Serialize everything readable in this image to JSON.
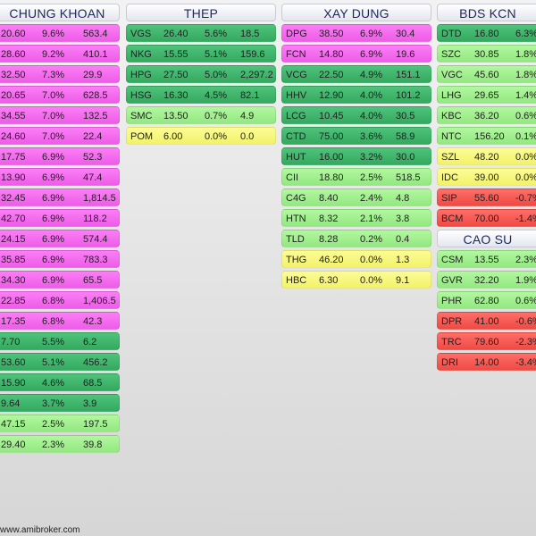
{
  "footer": {
    "watermark": "www.amibroker.com"
  },
  "colors": {
    "pink": "#f46cef",
    "dark_green": "#41b66d",
    "light_green": "#a3f090",
    "yellow": "#f7f780",
    "red": "#f75c57"
  },
  "columns": [
    {
      "title": "CHUNG KHOAN",
      "rows": [
        {
          "price": "20.60",
          "change": "9.6%",
          "volume": "563.4",
          "color": "pink"
        },
        {
          "price": "28.60",
          "change": "9.2%",
          "volume": "410.1",
          "color": "pink"
        },
        {
          "price": "32.50",
          "change": "7.3%",
          "volume": "29.9",
          "color": "pink"
        },
        {
          "price": "20.65",
          "change": "7.0%",
          "volume": "628.5",
          "color": "pink"
        },
        {
          "price": "34.55",
          "change": "7.0%",
          "volume": "132.5",
          "color": "pink"
        },
        {
          "price": "24.60",
          "change": "7.0%",
          "volume": "22.4",
          "color": "pink"
        },
        {
          "price": "17.75",
          "change": "6.9%",
          "volume": "52.3",
          "color": "pink"
        },
        {
          "price": "13.90",
          "change": "6.9%",
          "volume": "47.4",
          "color": "pink"
        },
        {
          "price": "32.45",
          "change": "6.9%",
          "volume": "1,814.5",
          "color": "pink"
        },
        {
          "price": "42.70",
          "change": "6.9%",
          "volume": "118.2",
          "color": "pink"
        },
        {
          "price": "24.15",
          "change": "6.9%",
          "volume": "574.4",
          "color": "pink"
        },
        {
          "price": "35.85",
          "change": "6.9%",
          "volume": "783.3",
          "color": "pink"
        },
        {
          "price": "34.30",
          "change": "6.9%",
          "volume": "65.5",
          "color": "pink"
        },
        {
          "price": "22.85",
          "change": "6.8%",
          "volume": "1,406.5",
          "color": "pink"
        },
        {
          "price": "17.35",
          "change": "6.8%",
          "volume": "42.3",
          "color": "pink"
        },
        {
          "price": "7.70",
          "change": "5.5%",
          "volume": "6.2",
          "color": "dark_green"
        },
        {
          "price": "53.60",
          "change": "5.1%",
          "volume": "456.2",
          "color": "dark_green"
        },
        {
          "price": "15.90",
          "change": "4.6%",
          "volume": "68.5",
          "color": "dark_green"
        },
        {
          "price": "9.64",
          "change": "3.7%",
          "volume": "3.9",
          "color": "dark_green"
        },
        {
          "price": "47.15",
          "change": "2.5%",
          "volume": "197.5",
          "color": "light_green"
        },
        {
          "price": "29.40",
          "change": "2.3%",
          "volume": "39.8",
          "color": "light_green"
        }
      ]
    },
    {
      "title": "THEP",
      "rows": [
        {
          "symbol": "VGS",
          "price": "26.40",
          "change": "5.6%",
          "volume": "18.5",
          "color": "dark_green"
        },
        {
          "symbol": "NKG",
          "price": "15.55",
          "change": "5.1%",
          "volume": "159.6",
          "color": "dark_green"
        },
        {
          "symbol": "HPG",
          "price": "27.50",
          "change": "5.0%",
          "volume": "2,297.2",
          "color": "dark_green"
        },
        {
          "symbol": "HSG",
          "price": "16.30",
          "change": "4.5%",
          "volume": "82.1",
          "color": "dark_green"
        },
        {
          "symbol": "SMC",
          "price": "13.50",
          "change": "0.7%",
          "volume": "4.9",
          "color": "light_green"
        },
        {
          "symbol": "POM",
          "price": "6.00",
          "change": "0.0%",
          "volume": "0.0",
          "color": "yellow"
        }
      ]
    },
    {
      "title": "XAY DUNG",
      "rows": [
        {
          "symbol": "DPG",
          "price": "38.50",
          "change": "6.9%",
          "volume": "30.4",
          "color": "pink"
        },
        {
          "symbol": "FCN",
          "price": "14.80",
          "change": "6.9%",
          "volume": "19.6",
          "color": "pink"
        },
        {
          "symbol": "VCG",
          "price": "22.50",
          "change": "4.9%",
          "volume": "151.1",
          "color": "dark_green"
        },
        {
          "symbol": "HHV",
          "price": "12.90",
          "change": "4.0%",
          "volume": "101.2",
          "color": "dark_green"
        },
        {
          "symbol": "LCG",
          "price": "10.45",
          "change": "4.0%",
          "volume": "30.5",
          "color": "dark_green"
        },
        {
          "symbol": "CTD",
          "price": "75.00",
          "change": "3.6%",
          "volume": "58.9",
          "color": "dark_green"
        },
        {
          "symbol": "HUT",
          "price": "16.00",
          "change": "3.2%",
          "volume": "30.0",
          "color": "dark_green"
        },
        {
          "symbol": "CII",
          "price": "18.80",
          "change": "2.5%",
          "volume": "518.5",
          "color": "light_green"
        },
        {
          "symbol": "C4G",
          "price": "8.40",
          "change": "2.4%",
          "volume": "4.8",
          "color": "light_green"
        },
        {
          "symbol": "HTN",
          "price": "8.32",
          "change": "2.1%",
          "volume": "3.8",
          "color": "light_green"
        },
        {
          "symbol": "TLD",
          "price": "8.28",
          "change": "0.2%",
          "volume": "0.4",
          "color": "light_green"
        },
        {
          "symbol": "THG",
          "price": "46.20",
          "change": "0.0%",
          "volume": "1.3",
          "color": "yellow"
        },
        {
          "symbol": "HBC",
          "price": "6.30",
          "change": "0.0%",
          "volume": "9.1",
          "color": "yellow"
        }
      ]
    },
    {
      "title": "BDS KCN",
      "rows": [
        {
          "symbol": "DTD",
          "price": "16.80",
          "change": "6.3%",
          "color": "dark_green"
        },
        {
          "symbol": "SZC",
          "price": "30.85",
          "change": "1.8%",
          "color": "light_green"
        },
        {
          "symbol": "VGC",
          "price": "45.60",
          "change": "1.8%",
          "color": "light_green"
        },
        {
          "symbol": "LHG",
          "price": "29.65",
          "change": "1.4%",
          "color": "light_green"
        },
        {
          "symbol": "KBC",
          "price": "36.20",
          "change": "0.6%",
          "color": "light_green"
        },
        {
          "symbol": "NTC",
          "price": "156.20",
          "change": "0.1%",
          "color": "light_green"
        },
        {
          "symbol": "SZL",
          "price": "48.20",
          "change": "0.0%",
          "color": "yellow"
        },
        {
          "symbol": "IDC",
          "price": "39.00",
          "change": "0.0%",
          "color": "yellow"
        },
        {
          "symbol": "SIP",
          "price": "55.60",
          "change": "-0.7%",
          "color": "red"
        },
        {
          "symbol": "BCM",
          "price": "70.00",
          "change": "-1.4%",
          "color": "red"
        }
      ]
    },
    {
      "title": "CAO SU",
      "rows": [
        {
          "symbol": "CSM",
          "price": "13.55",
          "change": "2.3%",
          "color": "light_green"
        },
        {
          "symbol": "GVR",
          "price": "32.20",
          "change": "1.9%",
          "color": "light_green"
        },
        {
          "symbol": "PHR",
          "price": "62.80",
          "change": "0.6%",
          "color": "light_green"
        },
        {
          "symbol": "DPR",
          "price": "41.00",
          "change": "-0.6%",
          "color": "red"
        },
        {
          "symbol": "TRC",
          "price": "79.60",
          "change": "-2.3%",
          "color": "red"
        },
        {
          "symbol": "DRI",
          "price": "14.00",
          "change": "-3.4%",
          "color": "red"
        }
      ]
    }
  ]
}
